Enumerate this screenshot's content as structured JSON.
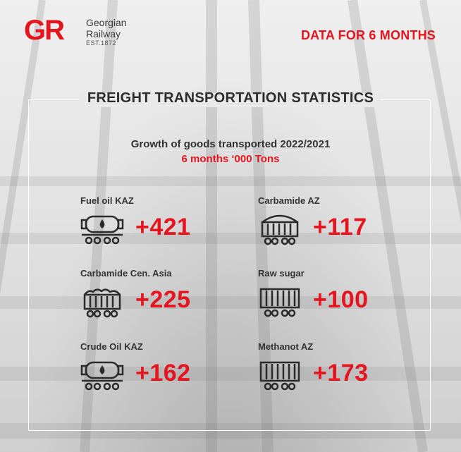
{
  "brand": {
    "logo_letters": "GR",
    "name_line1": "Georgian",
    "name_line2": "Railway",
    "est": "EST.1872",
    "accent_color": "#e4151f"
  },
  "header_tag": "DATA FOR 6 MONTHS",
  "title": "FREIGHT TRANSPORTATION STATISTICS",
  "subtitle": "Growth of goods transported 2022/2021",
  "subtitle_units": "6 months ‘000 Tons",
  "items": [
    {
      "label": "Fuel oil  KAZ",
      "value": "+421",
      "icon": "tank-car-icon"
    },
    {
      "label": "Carbamide AZ",
      "value": "+117",
      "icon": "hopper-car-icon"
    },
    {
      "label": "Carbamide Cen. Asia",
      "value": "+225",
      "icon": "hopper-car-icon"
    },
    {
      "label": "Raw sugar",
      "value": "+100",
      "icon": "boxcar-icon"
    },
    {
      "label": "Crude Oil KAZ",
      "value": "+162",
      "icon": "tank-car-icon"
    },
    {
      "label": "Methanot AZ",
      "value": "+173",
      "icon": "boxcar-icon"
    }
  ]
}
